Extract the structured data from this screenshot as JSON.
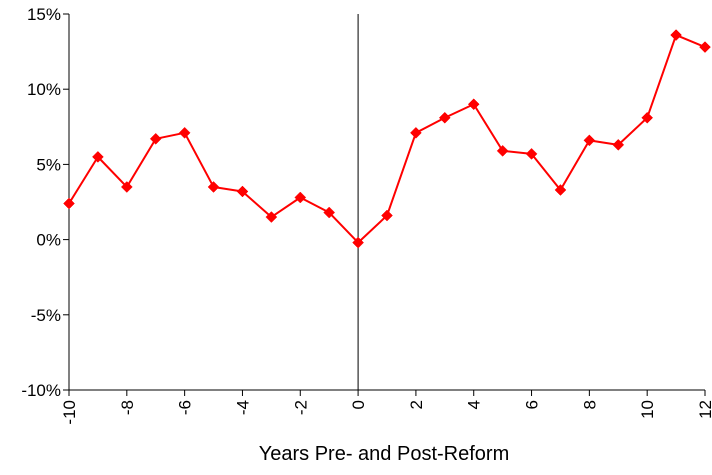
{
  "chart_data": {
    "type": "line",
    "title": "",
    "xlabel": "Years Pre- and Post-Reform",
    "ylabel": "",
    "x": [
      -10,
      -9,
      -8,
      -7,
      -6,
      -5,
      -4,
      -3,
      -2,
      -1,
      0,
      1,
      2,
      3,
      4,
      5,
      6,
      7,
      8,
      9,
      10,
      11,
      12
    ],
    "series": [
      {
        "values": [
          2.4,
          5.5,
          3.5,
          6.7,
          7.1,
          3.5,
          3.2,
          1.5,
          2.8,
          1.8,
          -0.2,
          1.6,
          7.1,
          8.1,
          9.0,
          5.9,
          5.7,
          3.3,
          6.6,
          6.3,
          8.1,
          13.6,
          12.8
        ],
        "color": "#ff0000"
      }
    ],
    "xlim": [
      -10,
      12
    ],
    "ylim": [
      -10,
      15
    ],
    "yticks": [
      -10,
      -5,
      0,
      5,
      10,
      15
    ],
    "ytick_labels": [
      "-10%",
      "-5%",
      "0%",
      "5%",
      "10%",
      "15%"
    ],
    "xticks": [
      -10,
      -8,
      -6,
      -4,
      -2,
      0,
      2,
      4,
      6,
      8,
      10,
      12
    ],
    "xtick_labels": [
      "-10",
      "-8",
      "-6",
      "-4",
      "-2",
      "0",
      "2",
      "4",
      "6",
      "8",
      "10",
      "12"
    ],
    "vertical_line_at": 0,
    "grid": false,
    "legend": "none",
    "marker": "diamond"
  }
}
